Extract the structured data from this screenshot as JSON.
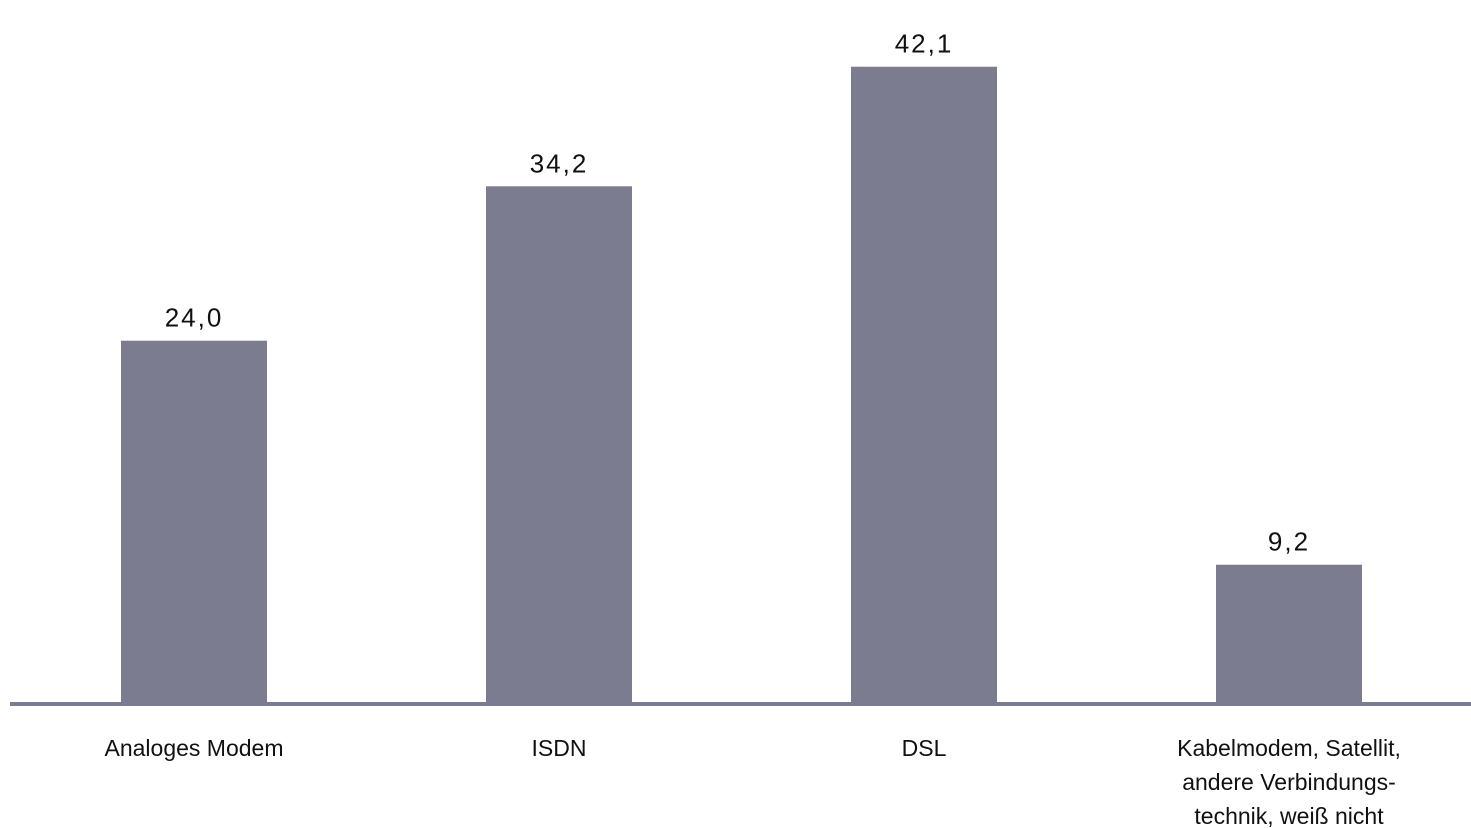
{
  "chart_data": {
    "type": "bar",
    "categories": [
      "Analoges Modem",
      "ISDN",
      "DSL",
      "Kabelmodem, Satellit,\nandere Verbindungs-\ntechnik, weiß nicht"
    ],
    "values": [
      24.0,
      34.2,
      42.1,
      9.2
    ],
    "value_labels": [
      "24,0",
      "34,2",
      "42,1",
      "9,2"
    ],
    "title": "",
    "xlabel": "",
    "ylabel": "",
    "ylim": [
      0,
      43.6
    ],
    "grid": false,
    "legend": "none",
    "colors": {
      "bar": "#7c7c91",
      "axis": "#7c7c91",
      "text": "#111111"
    }
  }
}
